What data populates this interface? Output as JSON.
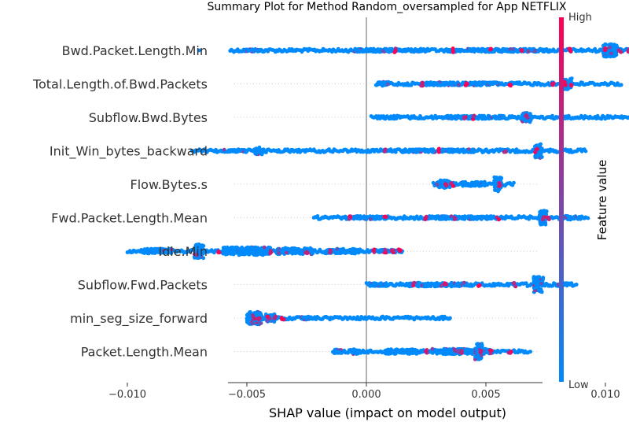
{
  "chart_data": {
    "type": "scatter",
    "title": "Summary Plot for Method Random_oversampled for App NETFLIX",
    "xlabel": "SHAP value (impact on model output)",
    "xlim": [
      -0.0115,
      0.0148
    ],
    "xticks": [
      -0.01,
      -0.005,
      0.0,
      0.005,
      0.01
    ],
    "xtick_labels": [
      "−0.010",
      "−0.005",
      "0.000",
      "0.005",
      "0.010"
    ],
    "zero_line": 0.0,
    "colorbar": {
      "title": "Feature value",
      "high_label": "High",
      "low_label": "Low",
      "low_color": "#008afb",
      "high_color": "#ff0052"
    },
    "features": [
      {
        "name": "Bwd.Packet.Length.Min",
        "min": -0.0057,
        "max": 0.0134,
        "outliers": [
          -0.007
        ],
        "clusters": [
          {
            "x": -0.0048,
            "w": 0.0008,
            "h": 3
          },
          {
            "x": 0.001,
            "w": 0.003,
            "h": 4
          },
          {
            "x": 0.006,
            "w": 0.0035,
            "h": 4
          },
          {
            "x": 0.0102,
            "w": 0.0006,
            "h": 16
          },
          {
            "x": 0.0118,
            "w": 0.0012,
            "h": 4
          }
        ],
        "highlights": [
          0.0012,
          0.0036,
          0.0052,
          0.0065,
          0.0085,
          0.01,
          0.0106,
          0.011,
          0.0122,
          0.0127,
          0.013
        ]
      },
      {
        "name": "Total.Length.of.Bwd.Packets",
        "min": 0.0004,
        "max": 0.0107,
        "clusters": [
          {
            "x": 0.0007,
            "w": 0.0005,
            "h": 5
          },
          {
            "x": 0.004,
            "w": 0.003,
            "h": 4
          },
          {
            "x": 0.0084,
            "w": 0.0004,
            "h": 14
          }
        ],
        "highlights": [
          0.0023,
          0.0042,
          0.006,
          0.0078,
          0.0083,
          0.0086
        ]
      },
      {
        "name": "Subflow.Bwd.Bytes",
        "min": 0.0002,
        "max": 0.0114,
        "outliers": [
          0.0114
        ],
        "clusters": [
          {
            "x": 0.001,
            "w": 0.0006,
            "h": 4
          },
          {
            "x": 0.0045,
            "w": 0.0025,
            "h": 4
          },
          {
            "x": 0.0067,
            "w": 0.0004,
            "h": 12
          }
        ],
        "highlights": [
          0.0041,
          0.0045,
          0.0067
        ]
      },
      {
        "name": "Init_Win_bytes_backward",
        "min": -0.0073,
        "max": 0.0092,
        "clusters": [
          {
            "x": -0.0055,
            "w": 0.001,
            "h": 3
          },
          {
            "x": -0.0045,
            "w": 0.0004,
            "h": 9
          },
          {
            "x": 0.003,
            "w": 0.003,
            "h": 4
          },
          {
            "x": 0.0072,
            "w": 0.0003,
            "h": 18
          }
        ],
        "highlights": [
          0.0008,
          0.003,
          0.0058,
          0.0071
        ]
      },
      {
        "name": "Flow.Bytes.s",
        "min": 0.0028,
        "max": 0.0062,
        "clusters": [
          {
            "x": 0.0032,
            "w": 0.0006,
            "h": 10
          },
          {
            "x": 0.0045,
            "w": 0.001,
            "h": 6
          },
          {
            "x": 0.0055,
            "w": 0.0003,
            "h": 18
          }
        ],
        "highlights": [
          0.0033,
          0.0036,
          0.0056
        ]
      },
      {
        "name": "Fwd.Packet.Length.Mean",
        "min": -0.0022,
        "max": 0.0093,
        "clusters": [
          {
            "x": 0.0,
            "w": 0.0015,
            "h": 4
          },
          {
            "x": 0.004,
            "w": 0.0025,
            "h": 4
          },
          {
            "x": 0.0074,
            "w": 0.0003,
            "h": 18
          },
          {
            "x": 0.0085,
            "w": 0.0005,
            "h": 5
          }
        ],
        "highlights": [
          -0.0007,
          0.0008,
          0.0025,
          0.0037,
          0.0055,
          0.0074,
          0.0076
        ]
      },
      {
        "name": "Idle.Min",
        "min": -0.01,
        "max": 0.0015,
        "outliers": [
          0.0015
        ],
        "clusters": [
          {
            "x": -0.0087,
            "w": 0.0012,
            "h": 6
          },
          {
            "x": -0.007,
            "w": 0.0004,
            "h": 18
          },
          {
            "x": -0.005,
            "w": 0.002,
            "h": 10
          },
          {
            "x": -0.003,
            "w": 0.0015,
            "h": 8
          },
          {
            "x": -0.001,
            "w": 0.0015,
            "h": 6
          },
          {
            "x": 0.0008,
            "w": 0.0006,
            "h": 4
          }
        ],
        "highlights": [
          -0.0062,
          -0.004,
          -0.0025,
          -0.0015,
          0.0003,
          0.0008,
          0.0011,
          0.0014
        ]
      },
      {
        "name": "Subflow.Fwd.Packets",
        "min": 0.0,
        "max": 0.0088,
        "clusters": [
          {
            "x": 0.0005,
            "w": 0.0008,
            "h": 4
          },
          {
            "x": 0.003,
            "w": 0.0025,
            "h": 5
          },
          {
            "x": 0.0072,
            "w": 0.0004,
            "h": 20
          },
          {
            "x": 0.0082,
            "w": 0.0005,
            "h": 4
          }
        ],
        "highlights": [
          0.002,
          0.0033,
          0.0047,
          0.0062
        ]
      },
      {
        "name": "min_seg_size_forward",
        "min": -0.005,
        "max": 0.0035,
        "outliers": [
          0.0035
        ],
        "clusters": [
          {
            "x": -0.0047,
            "w": 0.0006,
            "h": 16
          },
          {
            "x": -0.004,
            "w": 0.0004,
            "h": 10
          },
          {
            "x": -0.0025,
            "w": 0.0004,
            "h": 4
          }
        ],
        "highlights": [
          -0.0047,
          -0.0045,
          -0.0041,
          -0.0038,
          -0.0035
        ]
      },
      {
        "name": "Packet.Length.Mean",
        "min": -0.0014,
        "max": 0.0069,
        "clusters": [
          {
            "x": -0.0012,
            "w": 0.0003,
            "h": 5
          },
          {
            "x": -0.0005,
            "w": 0.0003,
            "h": 7
          },
          {
            "x": 0.0015,
            "w": 0.0015,
            "h": 6
          },
          {
            "x": 0.004,
            "w": 0.0025,
            "h": 7
          },
          {
            "x": 0.0047,
            "w": 0.0003,
            "h": 20
          }
        ],
        "highlights": [
          0.0025,
          0.004,
          0.0048,
          0.0052,
          0.006
        ]
      }
    ]
  }
}
